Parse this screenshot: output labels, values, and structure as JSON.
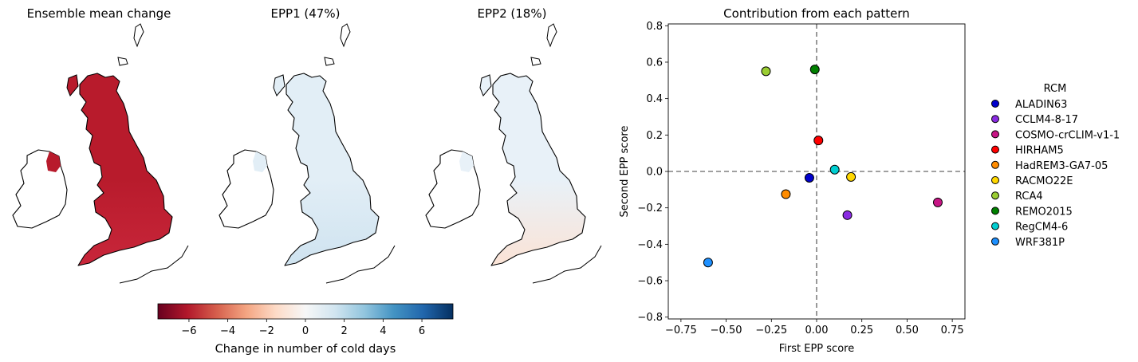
{
  "maps": [
    {
      "title": "Ensemble mean change",
      "fill": "#b81b2c",
      "fill_south": "#c8263a",
      "ireland_fill": "#ffffff"
    },
    {
      "title": "EPP1 (47%)",
      "fill": "#e2eef6",
      "fill_south": "#cfe3f0",
      "ireland_fill": "#ffffff"
    },
    {
      "title": "EPP2 (18%)",
      "fill": "#e8f1f8",
      "fill_south": "#fbe3d6",
      "ireland_fill": "#ffffff"
    }
  ],
  "colorbar": {
    "label": "Change in number of cold days",
    "ticks": [
      "−6",
      "−4",
      "−2",
      "0",
      "2",
      "4",
      "6"
    ],
    "tick_values": [
      -6,
      -4,
      -2,
      0,
      2,
      4,
      6
    ],
    "range": [
      -7.6,
      7.6
    ],
    "colormap": "RdBu",
    "colors": [
      "#67001f",
      "#b2182b",
      "#d6604d",
      "#f4a582",
      "#fddbc7",
      "#f7f7f7",
      "#d1e5f0",
      "#92c5de",
      "#4393c3",
      "#2166ac",
      "#053061"
    ]
  },
  "chart_data": {
    "type": "scatter",
    "title": "Contribution from each pattern",
    "xlabel": "First EPP score",
    "ylabel": "Second EPP score",
    "xlim": [
      -0.82,
      0.82
    ],
    "ylim": [
      -0.81,
      0.81
    ],
    "xticks": [
      -0.75,
      -0.5,
      -0.25,
      0.0,
      0.25,
      0.5,
      0.75
    ],
    "xtick_labels": [
      "−0.75",
      "−0.50",
      "−0.25",
      "0.00",
      "0.25",
      "0.50",
      "0.75"
    ],
    "yticks": [
      -0.8,
      -0.6,
      -0.4,
      -0.2,
      0.0,
      0.2,
      0.4,
      0.6,
      0.8
    ],
    "ytick_labels": [
      "−0.8",
      "−0.6",
      "−0.4",
      "−0.2",
      "0.0",
      "0.2",
      "0.4",
      "0.6",
      "0.8"
    ],
    "reference_lines": {
      "x": 0,
      "y": 0,
      "style": "dashed",
      "color": "#808080"
    },
    "legend_title": "RCM",
    "legend_position": "right",
    "grid": false,
    "series": [
      {
        "name": "ALADIN63",
        "color": "#0000cd",
        "x": -0.04,
        "y": -0.035
      },
      {
        "name": "CCLM4-8-17",
        "color": "#8a2be2",
        "x": 0.17,
        "y": -0.24
      },
      {
        "name": "COSMO-crCLIM-v1-1",
        "color": "#c71585",
        "x": 0.67,
        "y": -0.17
      },
      {
        "name": "HIRHAM5",
        "color": "#ff0000",
        "x": 0.01,
        "y": 0.17
      },
      {
        "name": "HadREM3-GA7-05",
        "color": "#ff8c00",
        "x": -0.17,
        "y": -0.125
      },
      {
        "name": "RACMO22E",
        "color": "#ffd700",
        "x": 0.19,
        "y": -0.03
      },
      {
        "name": "RCA4",
        "color": "#9acd32",
        "x": -0.28,
        "y": 0.55
      },
      {
        "name": "REMO2015",
        "color": "#008000",
        "x": -0.01,
        "y": 0.56
      },
      {
        "name": "RegCM4-6",
        "color": "#00ced1",
        "x": 0.1,
        "y": 0.01
      },
      {
        "name": "WRF381P",
        "color": "#1e90ff",
        "x": -0.6,
        "y": -0.5
      }
    ]
  }
}
